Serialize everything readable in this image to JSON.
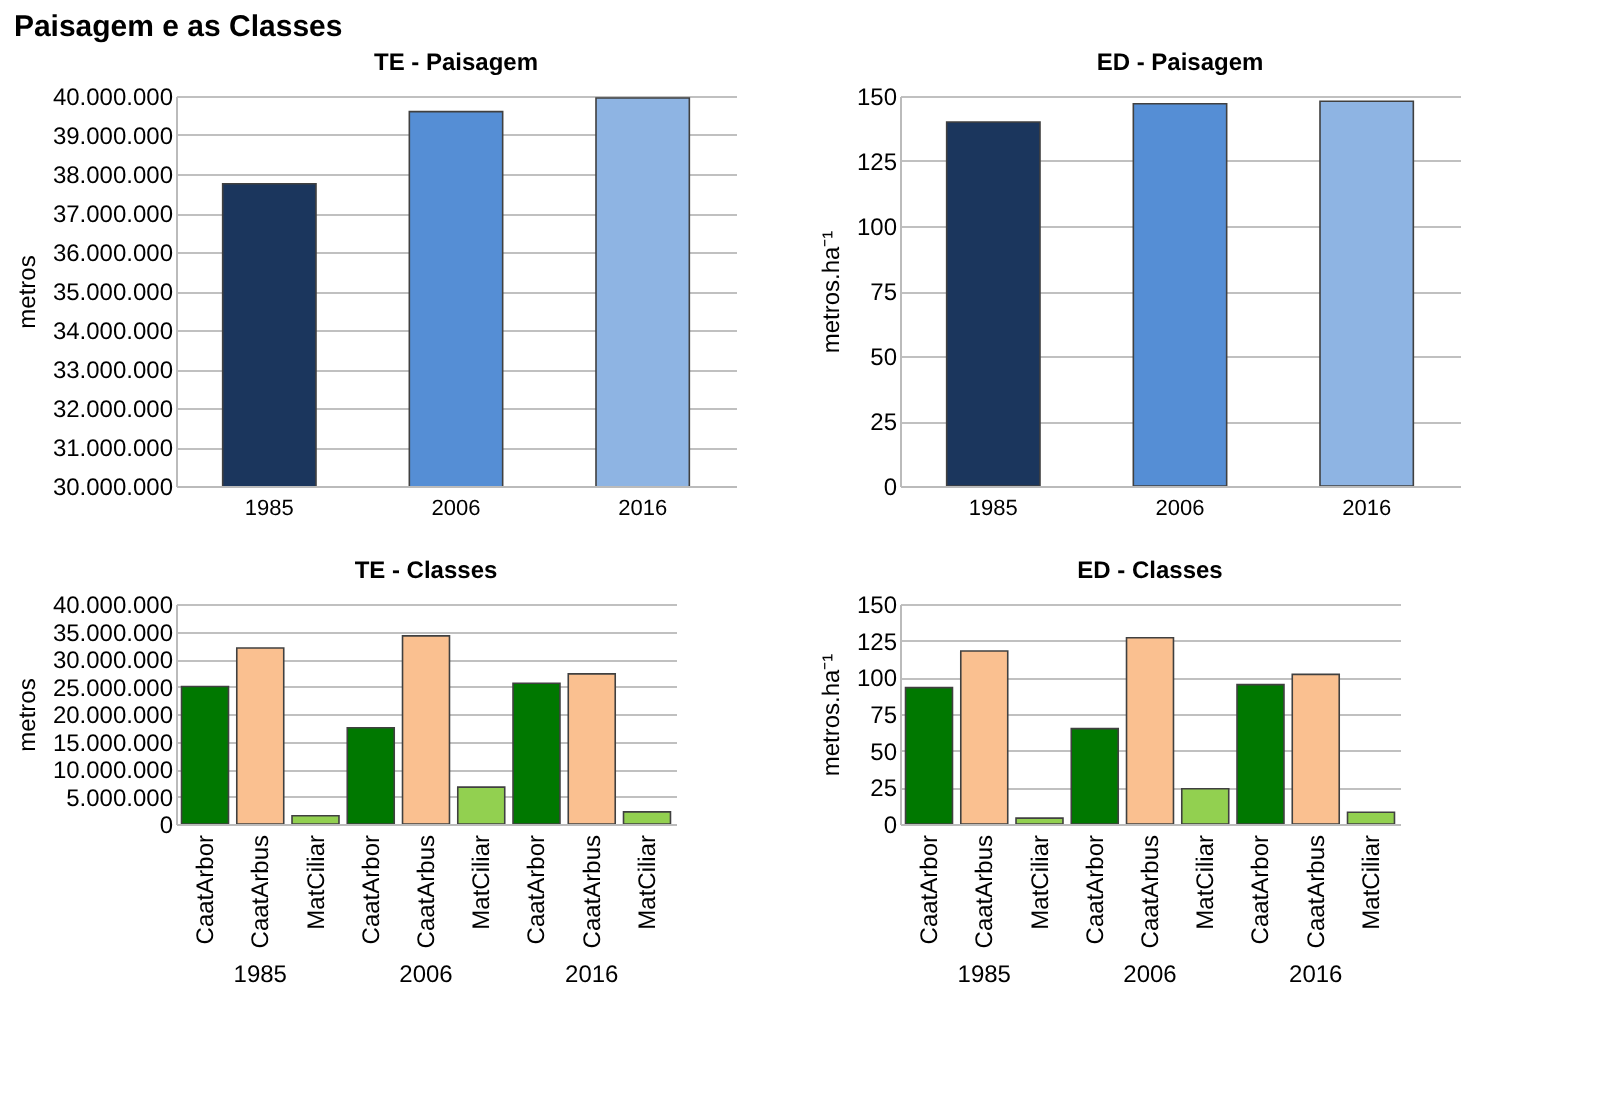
{
  "chart_data": [
    {
      "type": "bar",
      "title": "TE - Paisagem",
      "ylabel": "metros",
      "annotations": [
        "Paisagem e as Classes"
      ],
      "categories": [
        "1985",
        "2006",
        "2016"
      ],
      "values": [
        37750000,
        39600000,
        39950000
      ],
      "colors": [
        "#1b365d",
        "#558ed5",
        "#8eb4e3"
      ],
      "ylim": [
        30000000,
        40000000
      ],
      "yticks": [
        {
          "value": 30000000,
          "label": "30.000.000"
        },
        {
          "value": 31000000,
          "label": "31.000.000"
        },
        {
          "value": 32000000,
          "label": "32.000.000"
        },
        {
          "value": 33000000,
          "label": "33.000.000"
        },
        {
          "value": 34000000,
          "label": "34.000.000"
        },
        {
          "value": 35000000,
          "label": "35.000.000"
        },
        {
          "value": 36000000,
          "label": "36.000.000"
        },
        {
          "value": 37000000,
          "label": "37.000.000"
        },
        {
          "value": 38000000,
          "label": "38.000.000"
        },
        {
          "value": 39000000,
          "label": "39.000.000"
        },
        {
          "value": 40000000,
          "label": "40.000.000"
        }
      ],
      "grid": "y"
    },
    {
      "type": "bar",
      "title": "ED - Paisagem",
      "ylabel": "metros.ha⁻¹",
      "categories": [
        "1985",
        "2006",
        "2016"
      ],
      "values": [
        140,
        147,
        148
      ],
      "colors": [
        "#1b365d",
        "#558ed5",
        "#8eb4e3"
      ],
      "ylim": [
        0,
        150
      ],
      "yticks": [
        0,
        25,
        50,
        75,
        100,
        125,
        150
      ],
      "grid": "y"
    },
    {
      "type": "bar",
      "title": "TE - Classes",
      "ylabel": "metros",
      "annotations": [
        "1985",
        "2006",
        "2016"
      ],
      "categories": [
        "CaatArbor",
        "CaatArbus",
        "MatCiliar",
        "CaatArbor",
        "CaatArbus",
        "MatCiliar",
        "CaatArbor",
        "CaatArbus",
        "MatCiliar"
      ],
      "values": [
        25000000,
        32000000,
        1500000,
        17500000,
        34200000,
        6700000,
        25600000,
        27300000,
        2200000
      ],
      "colors": [
        "#007800",
        "#fac090",
        "#92d050",
        "#007800",
        "#fac090",
        "#92d050",
        "#007800",
        "#fac090",
        "#92d050"
      ],
      "ylim": [
        0,
        40000000
      ],
      "yticks": [
        0,
        {
          "value": 5000000,
          "label": "5.000.000"
        },
        {
          "value": 10000000,
          "label": "10.000.000"
        },
        {
          "value": 15000000,
          "label": "15.000.000"
        },
        {
          "value": 20000000,
          "label": "20.000.000"
        },
        {
          "value": 25000000,
          "label": "25.000.000"
        },
        {
          "value": 30000000,
          "label": "30.000.000"
        },
        {
          "value": 35000000,
          "label": "35.000.000"
        },
        {
          "value": 40000000,
          "label": "40.000.000"
        }
      ],
      "grid": "y"
    },
    {
      "type": "bar",
      "title": "ED - Classes",
      "ylabel": "metros.ha⁻¹",
      "annotations": [
        "1985",
        "2006",
        "2016"
      ],
      "categories": [
        "CaatArbor",
        "CaatArbus",
        "MatCiliar",
        "CaatArbor",
        "CaatArbus",
        "MatCiliar",
        "CaatArbor",
        "CaatArbus",
        "MatCiliar"
      ],
      "values": [
        93,
        118,
        4,
        65,
        127,
        24,
        95,
        102,
        8
      ],
      "colors": [
        "#007800",
        "#fac090",
        "#92d050",
        "#007800",
        "#fac090",
        "#92d050",
        "#007800",
        "#fac090",
        "#92d050"
      ],
      "ylim": [
        0,
        150
      ],
      "yticks": [
        0,
        25,
        50,
        75,
        100,
        125,
        150
      ],
      "grid": "y"
    }
  ]
}
